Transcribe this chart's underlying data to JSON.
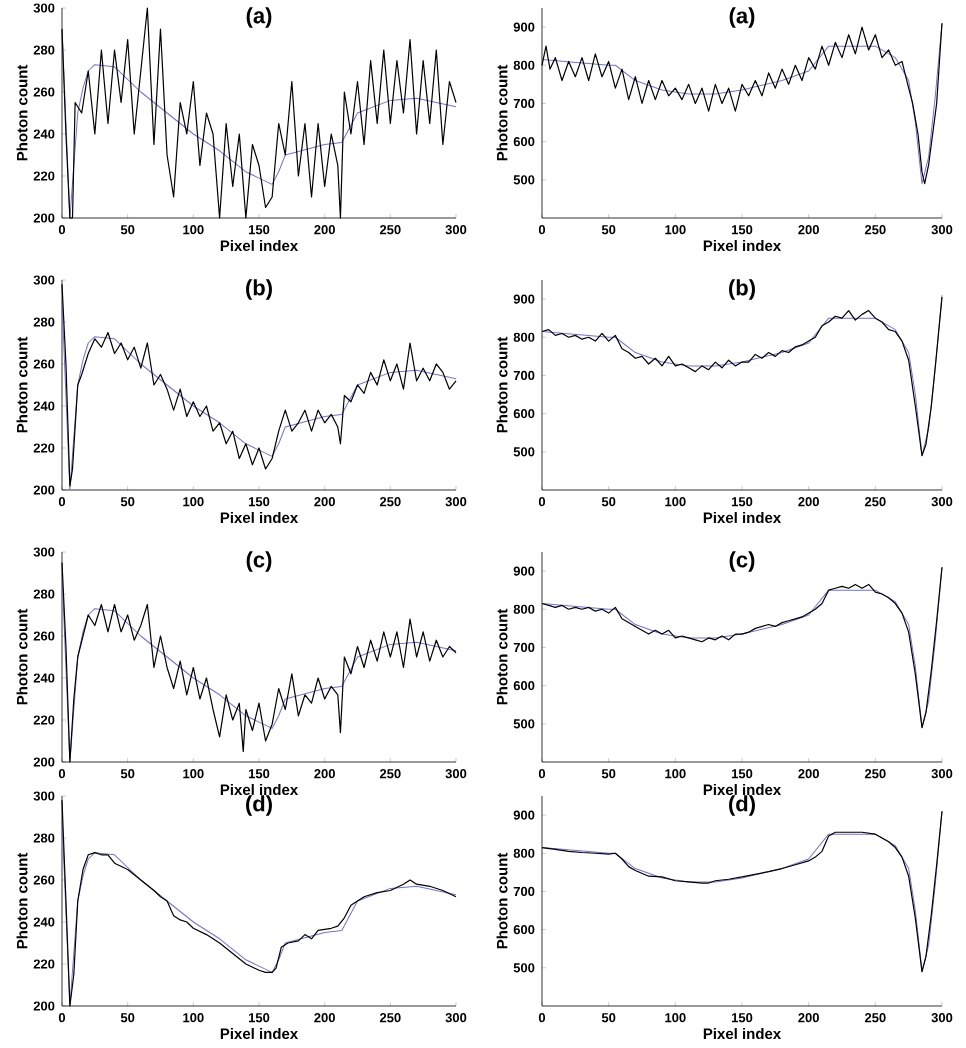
{
  "chart_data": [
    {
      "type": "line",
      "title": "(a)",
      "xlabel": "Pixel index",
      "ylabel": "Photon count",
      "xlim": [
        0,
        300
      ],
      "ylim": [
        200,
        300
      ],
      "xticks": [
        0,
        50,
        100,
        150,
        200,
        250,
        300
      ],
      "yticks": [
        200,
        220,
        240,
        260,
        280,
        300
      ],
      "series": [
        {
          "color": "#7070e0",
          "x": [
            0,
            3,
            6,
            9,
            12,
            16,
            20,
            25,
            40,
            60,
            80,
            100,
            120,
            140,
            160,
            165,
            170,
            200,
            213,
            225,
            250,
            270,
            300
          ],
          "values": [
            290,
            245,
            200,
            225,
            250,
            262,
            270,
            273,
            272,
            260,
            250,
            240,
            232,
            222,
            216,
            222,
            230,
            235,
            236,
            250,
            256,
            257,
            253
          ]
        },
        {
          "color": "#000000",
          "x": [
            0,
            3,
            6,
            8,
            10,
            15,
            20,
            25,
            30,
            35,
            40,
            45,
            50,
            55,
            60,
            65,
            70,
            75,
            80,
            85,
            90,
            95,
            100,
            105,
            110,
            115,
            120,
            125,
            130,
            135,
            140,
            145,
            150,
            155,
            160,
            165,
            170,
            175,
            180,
            185,
            190,
            195,
            200,
            205,
            210,
            212,
            215,
            220,
            225,
            230,
            235,
            240,
            245,
            250,
            255,
            260,
            265,
            270,
            275,
            280,
            285,
            290,
            295,
            300
          ],
          "values": [
            290,
            240,
            200,
            200,
            255,
            250,
            270,
            240,
            280,
            245,
            280,
            255,
            285,
            240,
            270,
            300,
            235,
            290,
            230,
            210,
            255,
            240,
            265,
            225,
            250,
            240,
            200,
            245,
            215,
            240,
            200,
            235,
            225,
            205,
            210,
            245,
            230,
            265,
            220,
            245,
            210,
            245,
            215,
            240,
            225,
            200,
            260,
            240,
            265,
            235,
            275,
            245,
            280,
            245,
            275,
            250,
            285,
            240,
            275,
            245,
            280,
            235,
            265,
            255
          ]
        }
      ]
    },
    {
      "type": "line",
      "title": "(a)",
      "xlabel": "Pixel index",
      "ylabel": "Photon count",
      "xlim": [
        0,
        300
      ],
      "ylim": [
        400,
        950
      ],
      "xticks": [
        0,
        50,
        100,
        150,
        200,
        250,
        300
      ],
      "yticks": [
        500,
        600,
        700,
        800,
        900
      ],
      "series": [
        {
          "color": "#7070e0",
          "x": [
            0,
            50,
            55,
            70,
            90,
            110,
            130,
            150,
            180,
            200,
            215,
            250,
            265,
            275,
            280,
            285,
            290,
            295,
            300
          ],
          "values": [
            815,
            800,
            800,
            760,
            735,
            725,
            725,
            735,
            760,
            785,
            850,
            850,
            820,
            760,
            650,
            490,
            560,
            720,
            910
          ]
        },
        {
          "color": "#000000",
          "x": [
            0,
            3,
            6,
            10,
            15,
            20,
            25,
            30,
            35,
            40,
            45,
            50,
            55,
            60,
            65,
            70,
            75,
            80,
            85,
            90,
            95,
            100,
            105,
            110,
            115,
            120,
            125,
            130,
            135,
            140,
            145,
            150,
            155,
            160,
            165,
            170,
            175,
            180,
            185,
            190,
            195,
            200,
            205,
            210,
            215,
            220,
            225,
            230,
            235,
            240,
            245,
            250,
            255,
            260,
            265,
            270,
            275,
            278,
            282,
            285,
            287,
            290,
            293,
            296,
            300
          ],
          "values": [
            800,
            850,
            790,
            820,
            760,
            810,
            770,
            820,
            760,
            830,
            770,
            810,
            740,
            790,
            710,
            770,
            700,
            760,
            710,
            760,
            720,
            740,
            710,
            750,
            700,
            740,
            680,
            750,
            700,
            740,
            680,
            750,
            720,
            760,
            720,
            780,
            740,
            790,
            750,
            800,
            760,
            820,
            790,
            850,
            800,
            860,
            820,
            880,
            830,
            900,
            840,
            880,
            820,
            840,
            800,
            810,
            740,
            700,
            620,
            520,
            490,
            540,
            620,
            700,
            910
          ]
        }
      ]
    },
    {
      "type": "line",
      "title": "(b)",
      "xlabel": "Pixel index",
      "ylabel": "Photon count",
      "xlim": [
        0,
        300
      ],
      "ylim": [
        200,
        300
      ],
      "xticks": [
        0,
        50,
        100,
        150,
        200,
        250,
        300
      ],
      "yticks": [
        200,
        220,
        240,
        260,
        280,
        300
      ],
      "series": [
        {
          "color": "#7070e0",
          "x": [
            0,
            3,
            6,
            9,
            12,
            16,
            20,
            25,
            40,
            60,
            80,
            100,
            120,
            140,
            160,
            165,
            170,
            200,
            213,
            225,
            250,
            270,
            300
          ],
          "values": [
            290,
            245,
            200,
            225,
            250,
            262,
            270,
            273,
            272,
            260,
            250,
            240,
            232,
            222,
            216,
            222,
            230,
            235,
            236,
            250,
            256,
            257,
            253
          ]
        },
        {
          "color": "#000000",
          "x": [
            0,
            3,
            6,
            8,
            12,
            15,
            20,
            25,
            30,
            35,
            40,
            45,
            50,
            55,
            60,
            65,
            70,
            75,
            80,
            85,
            90,
            95,
            100,
            105,
            110,
            115,
            120,
            125,
            130,
            135,
            140,
            145,
            150,
            155,
            160,
            165,
            170,
            175,
            180,
            185,
            190,
            195,
            200,
            205,
            210,
            212,
            215,
            220,
            225,
            230,
            235,
            240,
            245,
            250,
            255,
            260,
            265,
            270,
            275,
            280,
            285,
            290,
            295,
            300
          ],
          "values": [
            298,
            260,
            202,
            210,
            250,
            255,
            265,
            272,
            268,
            275,
            265,
            270,
            262,
            268,
            258,
            270,
            250,
            255,
            248,
            238,
            248,
            235,
            242,
            235,
            240,
            228,
            232,
            222,
            228,
            215,
            222,
            212,
            220,
            210,
            215,
            228,
            238,
            228,
            232,
            238,
            228,
            238,
            232,
            236,
            230,
            222,
            245,
            242,
            250,
            246,
            256,
            250,
            262,
            252,
            260,
            248,
            270,
            252,
            258,
            252,
            260,
            256,
            248,
            252
          ]
        }
      ]
    },
    {
      "type": "line",
      "title": "(b)",
      "xlabel": "Pixel index",
      "ylabel": "Photon count",
      "xlim": [
        0,
        300
      ],
      "ylim": [
        400,
        950
      ],
      "xticks": [
        0,
        50,
        100,
        150,
        200,
        250,
        300
      ],
      "yticks": [
        500,
        600,
        700,
        800,
        900
      ],
      "series": [
        {
          "color": "#7070e0",
          "x": [
            0,
            50,
            55,
            70,
            90,
            110,
            130,
            150,
            180,
            200,
            215,
            250,
            265,
            275,
            280,
            285,
            290,
            295,
            300
          ],
          "values": [
            815,
            800,
            800,
            760,
            735,
            725,
            725,
            735,
            760,
            785,
            850,
            850,
            820,
            760,
            650,
            490,
            560,
            720,
            910
          ]
        },
        {
          "color": "#000000",
          "x": [
            0,
            5,
            10,
            15,
            20,
            25,
            30,
            35,
            40,
            45,
            50,
            55,
            60,
            65,
            70,
            75,
            80,
            85,
            90,
            95,
            100,
            105,
            110,
            115,
            120,
            125,
            130,
            135,
            140,
            145,
            150,
            155,
            160,
            165,
            170,
            175,
            180,
            185,
            190,
            195,
            200,
            205,
            210,
            215,
            220,
            225,
            230,
            235,
            240,
            245,
            250,
            255,
            260,
            265,
            270,
            275,
            280,
            285,
            288,
            292,
            296,
            300
          ],
          "values": [
            815,
            820,
            805,
            810,
            800,
            805,
            795,
            800,
            790,
            810,
            790,
            805,
            770,
            760,
            745,
            750,
            730,
            745,
            725,
            750,
            725,
            730,
            720,
            710,
            725,
            715,
            735,
            720,
            740,
            725,
            735,
            735,
            755,
            745,
            760,
            750,
            765,
            760,
            775,
            780,
            790,
            800,
            830,
            840,
            855,
            850,
            870,
            845,
            860,
            870,
            850,
            840,
            820,
            815,
            790,
            740,
            620,
            490,
            520,
            620,
            760,
            905
          ]
        }
      ]
    },
    {
      "type": "line",
      "title": "(c)",
      "xlabel": "Pixel index",
      "ylabel": "Photon count",
      "xlim": [
        0,
        300
      ],
      "ylim": [
        200,
        300
      ],
      "xticks": [
        0,
        50,
        100,
        150,
        200,
        250,
        300
      ],
      "yticks": [
        200,
        220,
        240,
        260,
        280,
        300
      ],
      "series": [
        {
          "color": "#7070e0",
          "x": [
            0,
            3,
            6,
            9,
            12,
            16,
            20,
            25,
            40,
            60,
            80,
            100,
            120,
            140,
            160,
            165,
            170,
            200,
            213,
            225,
            250,
            270,
            300
          ],
          "values": [
            290,
            245,
            200,
            225,
            250,
            262,
            270,
            273,
            272,
            260,
            250,
            240,
            232,
            222,
            216,
            222,
            230,
            235,
            236,
            250,
            256,
            257,
            253
          ]
        },
        {
          "color": "#000000",
          "x": [
            0,
            3,
            6,
            9,
            12,
            16,
            20,
            25,
            30,
            35,
            40,
            45,
            50,
            55,
            60,
            65,
            70,
            75,
            80,
            85,
            90,
            95,
            100,
            105,
            110,
            115,
            120,
            125,
            130,
            135,
            138,
            140,
            145,
            150,
            155,
            160,
            165,
            170,
            175,
            180,
            185,
            190,
            195,
            200,
            205,
            210,
            212,
            215,
            220,
            225,
            230,
            235,
            240,
            245,
            250,
            255,
            260,
            265,
            270,
            275,
            280,
            285,
            290,
            295,
            300
          ],
          "values": [
            295,
            255,
            200,
            230,
            250,
            260,
            270,
            265,
            275,
            262,
            275,
            262,
            270,
            258,
            265,
            275,
            245,
            260,
            245,
            235,
            248,
            232,
            245,
            230,
            240,
            225,
            212,
            232,
            220,
            228,
            205,
            225,
            215,
            228,
            210,
            218,
            235,
            225,
            242,
            222,
            232,
            228,
            240,
            230,
            236,
            232,
            214,
            250,
            242,
            255,
            245,
            258,
            248,
            262,
            250,
            262,
            245,
            268,
            250,
            262,
            248,
            258,
            250,
            255,
            252
          ]
        }
      ]
    },
    {
      "type": "line",
      "title": "(c)",
      "xlabel": "Pixel index",
      "ylabel": "Photon count",
      "xlim": [
        0,
        300
      ],
      "ylim": [
        400,
        950
      ],
      "xticks": [
        0,
        50,
        100,
        150,
        200,
        250,
        300
      ],
      "yticks": [
        500,
        600,
        700,
        800,
        900
      ],
      "series": [
        {
          "color": "#7070e0",
          "x": [
            0,
            50,
            55,
            70,
            90,
            110,
            130,
            150,
            180,
            200,
            215,
            250,
            265,
            275,
            280,
            285,
            290,
            295,
            300
          ],
          "values": [
            815,
            800,
            800,
            760,
            735,
            725,
            725,
            735,
            760,
            785,
            850,
            850,
            820,
            760,
            650,
            490,
            560,
            720,
            910
          ]
        },
        {
          "color": "#000000",
          "x": [
            0,
            5,
            10,
            15,
            20,
            25,
            30,
            35,
            40,
            45,
            50,
            55,
            60,
            65,
            70,
            75,
            80,
            85,
            90,
            95,
            100,
            105,
            110,
            115,
            120,
            125,
            130,
            135,
            140,
            145,
            150,
            155,
            160,
            165,
            170,
            175,
            180,
            185,
            190,
            195,
            200,
            205,
            210,
            215,
            220,
            225,
            230,
            235,
            240,
            245,
            250,
            255,
            260,
            265,
            270,
            275,
            280,
            285,
            288,
            292,
            296,
            300
          ],
          "values": [
            815,
            810,
            805,
            810,
            800,
            805,
            800,
            805,
            795,
            800,
            790,
            805,
            775,
            765,
            755,
            745,
            735,
            745,
            735,
            745,
            725,
            730,
            725,
            720,
            715,
            725,
            720,
            730,
            720,
            735,
            735,
            740,
            750,
            755,
            760,
            755,
            765,
            770,
            775,
            780,
            790,
            800,
            815,
            850,
            855,
            860,
            855,
            865,
            855,
            865,
            845,
            840,
            830,
            815,
            790,
            740,
            630,
            490,
            530,
            640,
            770,
            910
          ]
        }
      ]
    },
    {
      "type": "line",
      "title": "(d)",
      "xlabel": "Pixel index",
      "ylabel": "Photon count",
      "xlim": [
        0,
        300
      ],
      "ylim": [
        200,
        300
      ],
      "xticks": [
        0,
        50,
        100,
        150,
        200,
        250,
        300
      ],
      "yticks": [
        200,
        220,
        240,
        260,
        280,
        300
      ],
      "series": [
        {
          "color": "#7070e0",
          "x": [
            0,
            3,
            6,
            9,
            12,
            16,
            20,
            25,
            40,
            60,
            80,
            100,
            120,
            140,
            160,
            165,
            170,
            200,
            213,
            225,
            250,
            270,
            300
          ],
          "values": [
            290,
            245,
            200,
            225,
            250,
            262,
            270,
            273,
            272,
            260,
            250,
            240,
            232,
            222,
            216,
            222,
            230,
            235,
            236,
            250,
            256,
            257,
            253
          ]
        },
        {
          "color": "#000000",
          "x": [
            0,
            3,
            6,
            9,
            12,
            16,
            20,
            25,
            30,
            35,
            40,
            50,
            60,
            70,
            75,
            80,
            85,
            90,
            95,
            100,
            110,
            120,
            130,
            140,
            150,
            155,
            160,
            163,
            167,
            172,
            180,
            185,
            190,
            195,
            205,
            210,
            215,
            220,
            230,
            240,
            250,
            260,
            265,
            270,
            280,
            290,
            300
          ],
          "values": [
            298,
            250,
            200,
            215,
            250,
            265,
            272,
            273,
            272,
            272,
            268,
            265,
            260,
            255,
            252,
            250,
            243,
            241,
            240,
            237,
            234,
            230,
            225,
            220,
            217,
            216,
            216,
            218,
            228,
            230,
            231,
            234,
            232,
            236,
            237,
            238,
            242,
            248,
            252,
            254,
            255,
            258,
            260,
            258,
            257,
            255,
            252
          ]
        }
      ]
    },
    {
      "type": "line",
      "title": "(d)",
      "xlabel": "Pixel index",
      "ylabel": "Photon count",
      "xlim": [
        0,
        300
      ],
      "ylim": [
        400,
        950
      ],
      "xticks": [
        0,
        50,
        100,
        150,
        200,
        250,
        300
      ],
      "yticks": [
        500,
        600,
        700,
        800,
        900
      ],
      "series": [
        {
          "color": "#7070e0",
          "x": [
            0,
            50,
            55,
            70,
            90,
            110,
            130,
            150,
            180,
            200,
            215,
            250,
            265,
            275,
            280,
            285,
            290,
            295,
            300
          ],
          "values": [
            815,
            800,
            800,
            760,
            735,
            725,
            725,
            735,
            760,
            785,
            850,
            850,
            820,
            760,
            650,
            490,
            560,
            720,
            910
          ]
        },
        {
          "color": "#000000",
          "x": [
            0,
            10,
            20,
            30,
            40,
            50,
            55,
            60,
            65,
            70,
            80,
            90,
            100,
            110,
            120,
            125,
            130,
            140,
            150,
            160,
            170,
            180,
            190,
            200,
            205,
            210,
            215,
            220,
            230,
            240,
            250,
            260,
            265,
            270,
            275,
            280,
            285,
            288,
            292,
            296,
            300
          ],
          "values": [
            815,
            810,
            805,
            802,
            800,
            798,
            800,
            785,
            765,
            755,
            740,
            738,
            728,
            725,
            722,
            722,
            728,
            732,
            738,
            745,
            752,
            760,
            770,
            780,
            790,
            805,
            845,
            855,
            855,
            855,
            850,
            830,
            815,
            790,
            740,
            630,
            490,
            530,
            640,
            770,
            910
          ]
        }
      ]
    }
  ]
}
